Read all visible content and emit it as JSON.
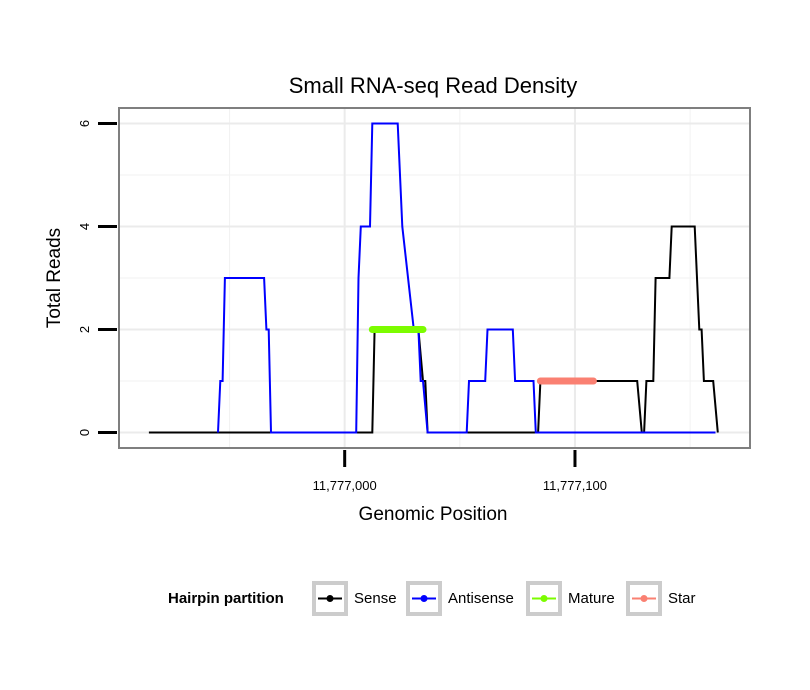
{
  "chart_data": {
    "type": "line",
    "title": "Small RNA-seq Read Density",
    "xlabel": "Genomic Position",
    "ylabel": "Total Reads",
    "xlim": [
      11776902,
      11777176
    ],
    "ylim": [
      -0.3,
      6.3
    ],
    "x_ticks": [
      11777000,
      11777100
    ],
    "x_tick_labels": [
      "11,777,000",
      "11,777,100"
    ],
    "y_ticks": [
      0,
      2,
      4,
      6
    ],
    "y_tick_labels": [
      "0",
      "2",
      "4",
      "6"
    ],
    "grid": true,
    "legend": {
      "title": "Hairpin partition",
      "position": "bottom",
      "entries": [
        {
          "name": "Sense",
          "color": "#000000"
        },
        {
          "name": "Antisense",
          "color": "#0000ff"
        },
        {
          "name": "Mature",
          "color": "#7cfc00"
        },
        {
          "name": "Star",
          "color": "#fa8072"
        }
      ]
    },
    "series": [
      {
        "name": "Sense",
        "color": "#000000",
        "x": [
          11776915,
          11777012,
          11777013,
          11777032,
          11777034,
          11777035,
          11777036,
          11777084,
          11777085,
          11777127,
          11777129,
          11777130,
          11777131,
          11777134,
          11777135,
          11777141,
          11777142,
          11777152,
          11777154,
          11777155,
          11777156,
          11777160,
          11777162
        ],
        "values": [
          0,
          0,
          2,
          2,
          1,
          1,
          0,
          0,
          1,
          1,
          0,
          0,
          1,
          1,
          3,
          3,
          4,
          4,
          2,
          2,
          1,
          1,
          0
        ]
      },
      {
        "name": "Antisense",
        "color": "#0000ff",
        "x": [
          11776945,
          11776946,
          11776947,
          11776948,
          11776965,
          11776966,
          11776967,
          11776968,
          11777005,
          11777006,
          11777007,
          11777011,
          11777012,
          11777023,
          11777025,
          11777030,
          11777032,
          11777033,
          11777034,
          11777036,
          11777053,
          11777054,
          11777061,
          11777062,
          11777073,
          11777074,
          11777082,
          11777083,
          11777161
        ],
        "values": [
          0,
          1,
          1,
          3,
          3,
          2,
          2,
          0,
          0,
          3,
          4,
          4,
          6,
          6,
          4,
          2,
          2,
          1,
          1,
          0,
          0,
          1,
          1,
          2,
          2,
          1,
          1,
          0,
          0
        ]
      },
      {
        "name": "Mature",
        "color": "#7cfc00",
        "x": [
          11777012,
          11777034
        ],
        "values": [
          2,
          2
        ]
      },
      {
        "name": "Star",
        "color": "#fa8072",
        "x": [
          11777085,
          11777108
        ],
        "values": [
          1,
          1
        ]
      }
    ]
  }
}
